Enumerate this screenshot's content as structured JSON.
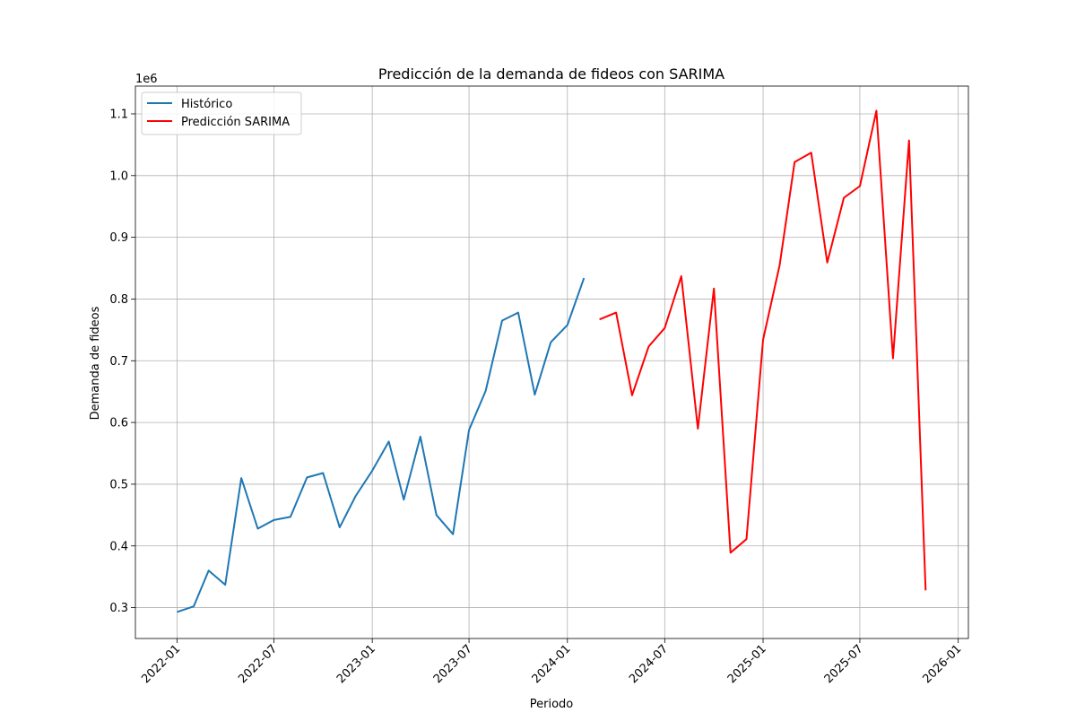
{
  "chart_data": {
    "type": "line",
    "title": "Predicción de la demanda de fideos con SARIMA",
    "xlabel": "Periodo",
    "ylabel": "Demanda de fideos",
    "y_multiplier_label": "1e6",
    "xlim": [
      "2021-10-15",
      "2026-01-20"
    ],
    "ylim": [
      0.25,
      1.145
    ],
    "x_ticks": [
      "2022-01",
      "2022-07",
      "2023-01",
      "2023-07",
      "2024-01",
      "2024-07",
      "2025-01",
      "2025-07",
      "2026-01"
    ],
    "y_ticks": [
      0.3,
      0.4,
      0.5,
      0.6,
      0.7,
      0.8,
      0.9,
      1.0,
      1.1
    ],
    "y_tick_labels": [
      "0.3",
      "0.4",
      "0.5",
      "0.6",
      "0.7",
      "0.8",
      "0.9",
      "1.0",
      "1.1"
    ],
    "grid": true,
    "legend_position": "top-left",
    "series": [
      {
        "name": "Histórico",
        "color": "#1f77b4",
        "x": [
          "2022-01",
          "2022-02",
          "2022-03",
          "2022-04",
          "2022-05",
          "2022-06",
          "2022-07",
          "2022-08",
          "2022-09",
          "2022-10",
          "2022-11",
          "2022-12",
          "2023-01",
          "2023-02",
          "2023-03",
          "2023-04",
          "2023-05",
          "2023-06",
          "2023-07",
          "2023-08",
          "2023-09",
          "2023-10",
          "2023-11",
          "2023-12",
          "2024-01",
          "2024-02"
        ],
        "y": [
          0.293,
          0.302,
          0.36,
          0.337,
          0.51,
          0.428,
          0.442,
          0.447,
          0.511,
          0.518,
          0.43,
          0.481,
          0.522,
          0.569,
          0.475,
          0.577,
          0.45,
          0.419,
          0.588,
          0.651,
          0.765,
          0.778,
          0.645,
          0.73,
          0.758,
          0.834
        ]
      },
      {
        "name": "Predicción SARIMA",
        "color": "#ff0000",
        "x": [
          "2024-03",
          "2024-04",
          "2024-05",
          "2024-06",
          "2024-07",
          "2024-08",
          "2024-09",
          "2024-10",
          "2024-11",
          "2024-12",
          "2025-01",
          "2025-02",
          "2025-03",
          "2025-04",
          "2025-05",
          "2025-06",
          "2025-07",
          "2025-08",
          "2025-09",
          "2025-10",
          "2025-11"
        ],
        "y": [
          0.767,
          0.778,
          0.644,
          0.723,
          0.753,
          0.837,
          0.59,
          0.817,
          0.389,
          0.411,
          0.734,
          0.855,
          1.022,
          1.037,
          0.859,
          0.964,
          0.983,
          1.105,
          0.704,
          1.057,
          0.328
        ]
      }
    ]
  }
}
